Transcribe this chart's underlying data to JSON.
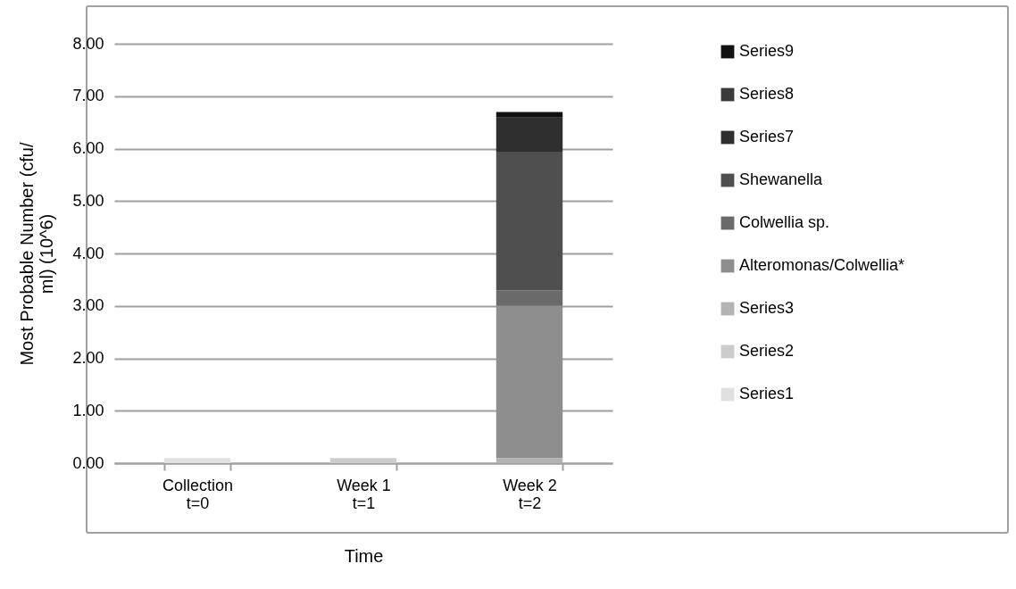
{
  "chart_data": {
    "type": "bar",
    "stacked": true,
    "xlabel": "Time",
    "ylabel": "Most Probable Number (cfu/\nml) (10^6)",
    "categories": [
      "Collection\nt=0",
      "Week 1\nt=1",
      "Week 2\nt=2"
    ],
    "series": [
      {
        "name": "Series1",
        "color": "#e0e0e0",
        "values": [
          0.1,
          null,
          null
        ]
      },
      {
        "name": "Series2",
        "color": "#cccccc",
        "values": [
          null,
          0.1,
          null
        ]
      },
      {
        "name": "Series3",
        "color": "#b3b3b3",
        "values": [
          null,
          null,
          0.1
        ]
      },
      {
        "name": "Alteromonas/Colwellia*",
        "color": "#8e8e8e",
        "values": [
          null,
          null,
          2.9
        ]
      },
      {
        "name": "Colwellia sp.",
        "color": "#6a6a6a",
        "values": [
          null,
          null,
          0.3
        ]
      },
      {
        "name": "Shewanella",
        "color": "#4f4f4f",
        "values": [
          null,
          null,
          2.64
        ]
      },
      {
        "name": "Series7",
        "color": "#2f2f2f",
        "values": [
          null,
          null,
          0.65
        ]
      },
      {
        "name": "Series8",
        "color": "#3a3a3a",
        "values": [
          null,
          null,
          null
        ]
      },
      {
        "name": "Series9",
        "color": "#111111",
        "values": [
          null,
          null,
          0.11
        ]
      }
    ],
    "ylim": [
      0,
      8
    ],
    "yticks": [
      {
        "value": 0,
        "label": "0.00"
      },
      {
        "value": 1,
        "label": "1.00"
      },
      {
        "value": 2,
        "label": "2.00"
      },
      {
        "value": 3,
        "label": "3.00"
      },
      {
        "value": 4,
        "label": "4.00"
      },
      {
        "value": 5,
        "label": "5.00"
      },
      {
        "value": 6,
        "label": "6.00"
      },
      {
        "value": 7,
        "label": "7.00"
      },
      {
        "value": 8,
        "label": "8.00"
      }
    ],
    "grid": "y",
    "legend": "right"
  }
}
